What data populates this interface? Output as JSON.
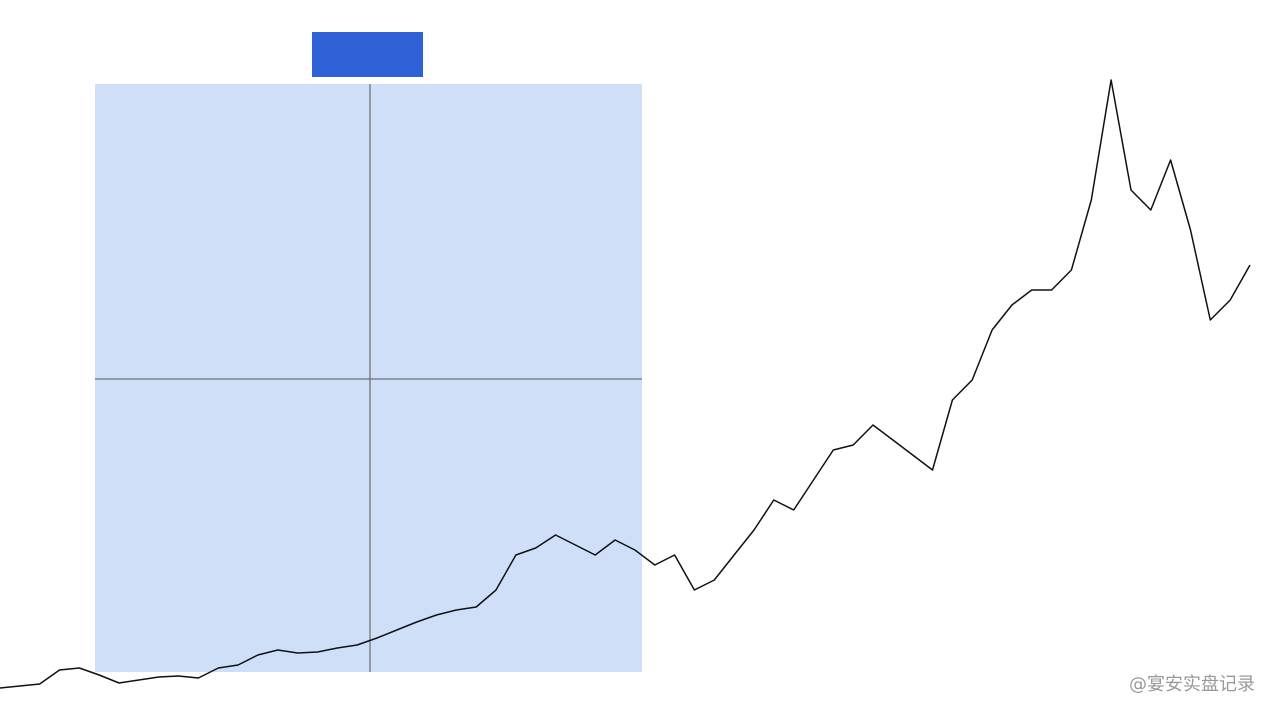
{
  "chart_data": {
    "type": "line",
    "series": [
      {
        "color": "#111111",
        "values": [
          26,
          28,
          30,
          44,
          46,
          39,
          31,
          34,
          37,
          38,
          36,
          46,
          49,
          59,
          64,
          61,
          62,
          66,
          69,
          76,
          84,
          92,
          99,
          104,
          107,
          124,
          159,
          166,
          179,
          169,
          159,
          174,
          164,
          149,
          159,
          124,
          134,
          159,
          184,
          214,
          204,
          234,
          264,
          269,
          289,
          274,
          259,
          244,
          314,
          334,
          384,
          409,
          424,
          424,
          444,
          514,
          634,
          524,
          504,
          554,
          484,
          394,
          414,
          449
        ]
      }
    ],
    "ylim": [
      0,
      714
    ]
  },
  "watermark": "@宴安实盘记录"
}
